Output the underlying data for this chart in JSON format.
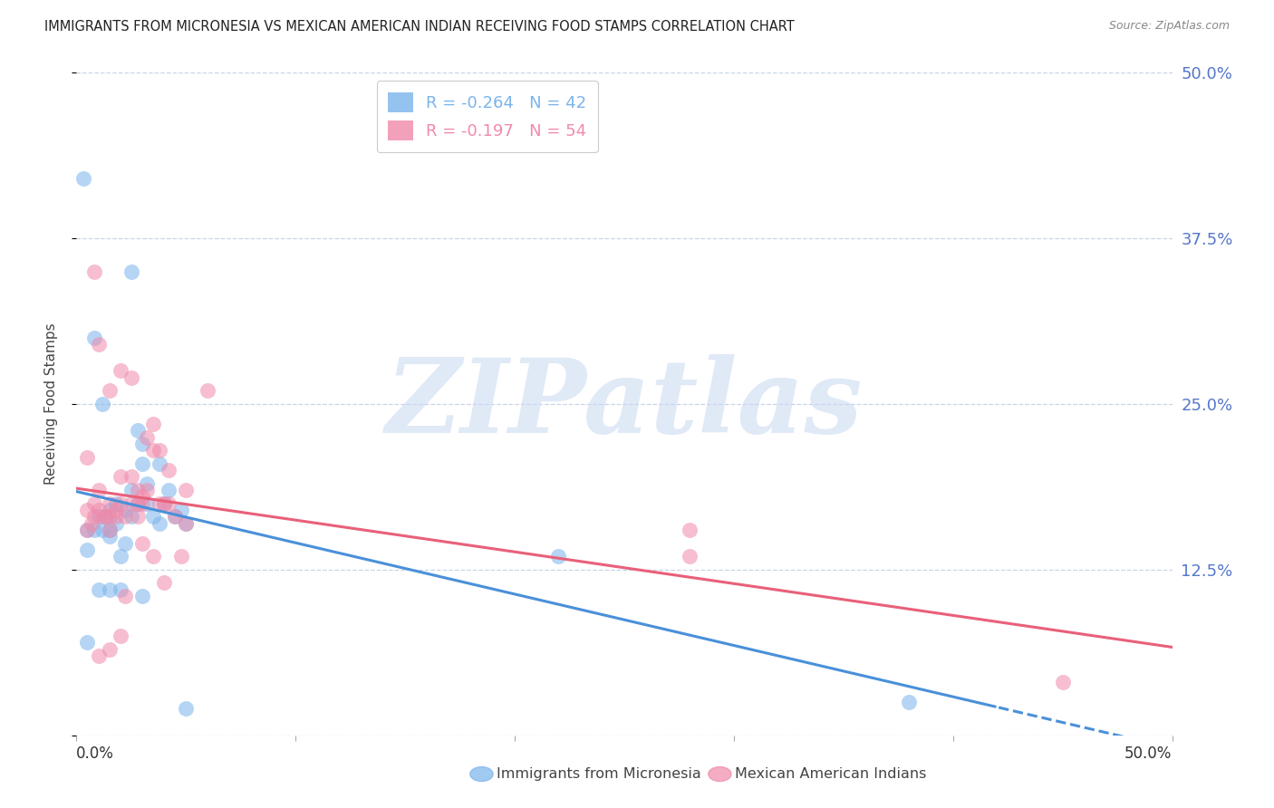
{
  "title": "IMMIGRANTS FROM MICRONESIA VS MEXICAN AMERICAN INDIAN RECEIVING FOOD STAMPS CORRELATION CHART",
  "source": "Source: ZipAtlas.com",
  "ylabel": "Receiving Food Stamps",
  "series1_label": "Immigrants from Micronesia",
  "series2_label": "Mexican American Indians",
  "color1": "#7ab4ec",
  "color2": "#f08aaa",
  "line_color1": "#4a90d9",
  "line_color2": "#e8607a",
  "R1": -0.264,
  "N1": 42,
  "R2": -0.197,
  "N2": 54,
  "watermark_zip": "ZIP",
  "watermark_atlas": "atlas",
  "watermark_color_zip": "#c8d8f0",
  "watermark_color_atlas": "#c8d8f0",
  "title_fontsize": 10.5,
  "source_fontsize": 9,
  "axis_label_fontsize": 11,
  "tick_fontsize": 12,
  "legend_fontsize": 13,
  "background_color": "#ffffff",
  "grid_color": "#c8d4e8",
  "xlim": [
    0.0,
    0.5
  ],
  "ylim": [
    0.0,
    0.5
  ],
  "yticks": [
    0.0,
    0.125,
    0.25,
    0.375,
    0.5
  ],
  "ytick_labels": [
    "",
    "12.5%",
    "25.0%",
    "37.5%",
    "50.0%"
  ],
  "xticks": [
    0.0,
    0.1,
    0.2,
    0.3,
    0.4,
    0.5
  ],
  "scatter1_x": [
    0.003,
    0.005,
    0.005,
    0.008,
    0.01,
    0.012,
    0.013,
    0.015,
    0.015,
    0.015,
    0.018,
    0.018,
    0.02,
    0.022,
    0.022,
    0.025,
    0.025,
    0.028,
    0.028,
    0.03,
    0.03,
    0.032,
    0.032,
    0.035,
    0.038,
    0.038,
    0.04,
    0.042,
    0.045,
    0.048,
    0.05,
    0.025,
    0.01,
    0.015,
    0.02,
    0.03,
    0.05,
    0.38,
    0.008,
    0.012,
    0.22,
    0.005
  ],
  "scatter1_y": [
    0.42,
    0.155,
    0.14,
    0.155,
    0.165,
    0.155,
    0.165,
    0.17,
    0.15,
    0.155,
    0.16,
    0.175,
    0.135,
    0.145,
    0.17,
    0.165,
    0.185,
    0.175,
    0.23,
    0.22,
    0.205,
    0.19,
    0.175,
    0.165,
    0.16,
    0.205,
    0.175,
    0.185,
    0.165,
    0.17,
    0.16,
    0.35,
    0.11,
    0.11,
    0.11,
    0.105,
    0.02,
    0.025,
    0.3,
    0.25,
    0.135,
    0.07
  ],
  "scatter2_x": [
    0.005,
    0.005,
    0.007,
    0.008,
    0.008,
    0.01,
    0.01,
    0.012,
    0.013,
    0.015,
    0.015,
    0.015,
    0.018,
    0.018,
    0.02,
    0.02,
    0.022,
    0.025,
    0.025,
    0.028,
    0.028,
    0.028,
    0.03,
    0.03,
    0.032,
    0.032,
    0.035,
    0.035,
    0.038,
    0.038,
    0.04,
    0.042,
    0.042,
    0.045,
    0.048,
    0.05,
    0.05,
    0.06,
    0.28,
    0.45,
    0.28,
    0.005,
    0.008,
    0.01,
    0.015,
    0.02,
    0.025,
    0.03,
    0.035,
    0.04,
    0.022,
    0.01,
    0.015,
    0.02
  ],
  "scatter2_y": [
    0.155,
    0.17,
    0.16,
    0.165,
    0.175,
    0.17,
    0.185,
    0.165,
    0.165,
    0.175,
    0.155,
    0.165,
    0.17,
    0.165,
    0.175,
    0.195,
    0.165,
    0.175,
    0.195,
    0.175,
    0.165,
    0.185,
    0.18,
    0.175,
    0.225,
    0.185,
    0.235,
    0.215,
    0.215,
    0.175,
    0.175,
    0.175,
    0.2,
    0.165,
    0.135,
    0.185,
    0.16,
    0.26,
    0.135,
    0.04,
    0.155,
    0.21,
    0.35,
    0.295,
    0.26,
    0.275,
    0.27,
    0.145,
    0.135,
    0.115,
    0.105,
    0.06,
    0.065,
    0.075
  ]
}
